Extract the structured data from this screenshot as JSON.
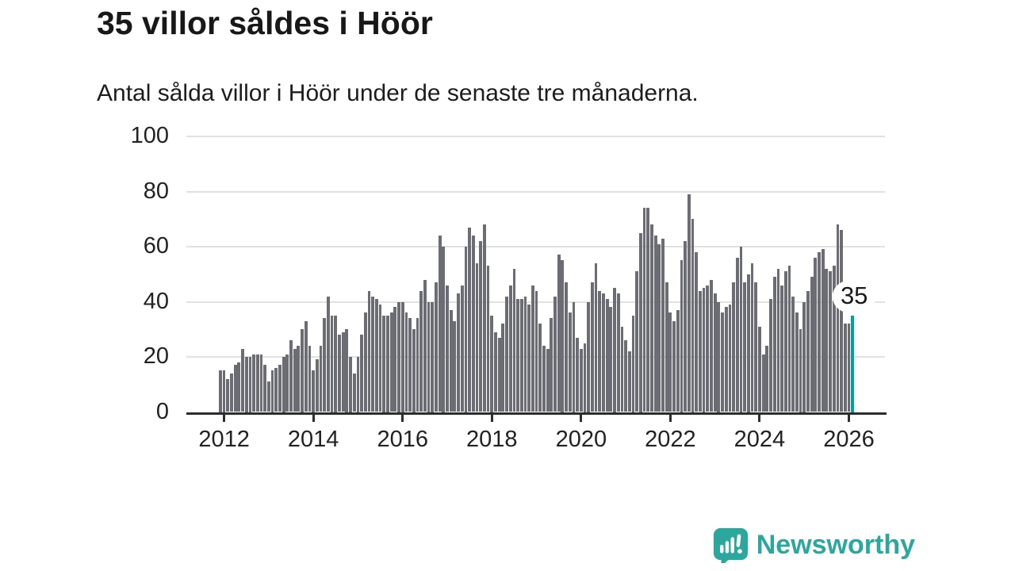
{
  "title": "35 villor såldes i Höör",
  "subtitle": "Antal sålda villor i Höör under de senaste tre månaderna.",
  "annotation": {
    "latest_value_label": "35"
  },
  "branding": {
    "name": "Newsworthy",
    "color": "#2ca79e",
    "icon": "newsworthy-speech-bubble-chart-icon"
  },
  "colors": {
    "bar": "#6c6c75",
    "highlight_bar": "#00a49d",
    "grid": "#e1e1e1",
    "axis": "#2d2d2d",
    "text": "#222222"
  },
  "chart_data": {
    "type": "bar",
    "title": "35 villor såldes i Höör",
    "subtitle": "Antal sålda villor i Höör under de senaste tre månaderna.",
    "unit": "antal sålda villor (rullande tre månader)",
    "frequency": "monthly",
    "x_start": "2011-12",
    "x_end": "2026-02",
    "ylim": [
      0,
      100
    ],
    "y_ticks": [
      0,
      20,
      40,
      60,
      80,
      100
    ],
    "grid": "horizontal",
    "legend": "none",
    "x_tick_labels": [
      "2012",
      "2014",
      "2016",
      "2018",
      "2020",
      "2022",
      "2024",
      "2026"
    ],
    "x_tick_month_indices": [
      1,
      25,
      49,
      73,
      97,
      121,
      145,
      169
    ],
    "highlight_index": 170,
    "highlight_value": 35,
    "values": [
      15,
      15,
      12,
      14,
      17,
      18,
      23,
      20,
      20,
      21,
      21,
      21,
      17,
      11,
      15,
      16,
      17,
      20,
      21,
      26,
      23,
      24,
      30,
      33,
      24,
      15,
      19,
      24,
      34,
      42,
      35,
      35,
      28,
      29,
      30,
      20,
      14,
      20,
      28,
      36,
      44,
      42,
      41,
      39,
      35,
      35,
      36,
      38,
      40,
      40,
      36,
      34,
      30,
      34,
      44,
      48,
      40,
      40,
      47,
      64,
      60,
      46,
      37,
      33,
      43,
      46,
      60,
      67,
      64,
      54,
      62,
      68,
      53,
      35,
      29,
      27,
      32,
      42,
      46,
      52,
      41,
      41,
      42,
      39,
      46,
      44,
      32,
      24,
      23,
      34,
      42,
      57,
      55,
      47,
      36,
      40,
      27,
      23,
      25,
      40,
      47,
      54,
      44,
      43,
      41,
      38,
      45,
      43,
      31,
      26,
      22,
      35,
      51,
      65,
      74,
      74,
      68,
      64,
      61,
      63,
      47,
      36,
      33,
      37,
      55,
      62,
      79,
      70,
      58,
      44,
      45,
      46,
      48,
      43,
      40,
      36,
      38,
      39,
      47,
      56,
      60,
      47,
      50,
      54,
      47,
      31,
      21,
      24,
      41,
      49,
      52,
      46,
      51,
      53,
      42,
      36,
      30,
      40,
      44,
      49,
      56,
      58,
      59,
      52,
      51,
      53,
      68,
      66,
      32,
      32,
      35
    ]
  }
}
